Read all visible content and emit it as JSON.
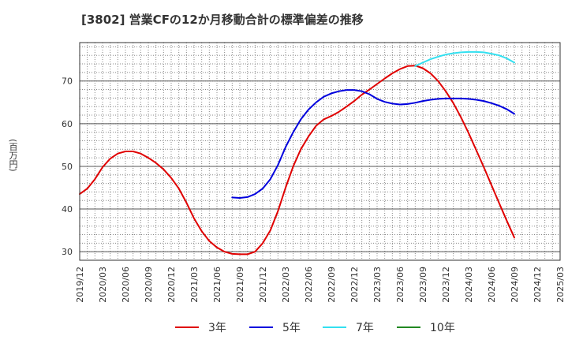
{
  "title": "[3802]  営業CFの12か月移動合計の標準偏差の推移",
  "y_unit": "(百万円)",
  "colors": {
    "3y": "#e00000",
    "5y": "#0000dd",
    "7y": "#33e0f0",
    "10y": "#228822",
    "grid": "#888888",
    "axis": "#333333"
  },
  "chart_data": {
    "type": "line",
    "title": "[3802]  営業CFの12か月移動合計の標準偏差の推移",
    "ylabel": "(百万円)",
    "xlabel": "",
    "ylim": [
      28,
      79
    ],
    "yticks": [
      30,
      40,
      50,
      60,
      70
    ],
    "xlim": [
      "2019-12",
      "2025-03"
    ],
    "xticks": [
      "2019/12",
      "2020/03",
      "2020/06",
      "2020/09",
      "2020/12",
      "2021/03",
      "2021/06",
      "2021/09",
      "2021/12",
      "2022/03",
      "2022/06",
      "2022/09",
      "2022/12",
      "2023/03",
      "2023/06",
      "2023/09",
      "2023/12",
      "2024/03",
      "2024/06",
      "2024/09",
      "2024/12",
      "2025/03"
    ],
    "grid": true,
    "legend_position": "bottom",
    "series": [
      {
        "name": "3年",
        "color": "#e00000",
        "x": [
          "2019-12",
          "2020-01",
          "2020-02",
          "2020-03",
          "2020-04",
          "2020-05",
          "2020-06",
          "2020-07",
          "2020-08",
          "2020-09",
          "2020-10",
          "2020-11",
          "2020-12",
          "2021-01",
          "2021-02",
          "2021-03",
          "2021-04",
          "2021-05",
          "2021-06",
          "2021-07",
          "2021-08",
          "2021-09",
          "2021-10",
          "2021-11",
          "2021-12",
          "2022-01",
          "2022-02",
          "2022-03",
          "2022-04",
          "2022-05",
          "2022-06",
          "2022-07",
          "2022-08",
          "2022-09",
          "2022-10",
          "2022-11",
          "2022-12",
          "2023-01",
          "2023-02",
          "2023-03",
          "2023-04",
          "2023-05",
          "2023-06",
          "2023-07",
          "2023-08",
          "2023-09",
          "2023-10",
          "2023-11",
          "2023-12",
          "2024-01",
          "2024-02",
          "2024-03",
          "2024-04",
          "2024-05",
          "2024-06",
          "2024-07",
          "2024-08",
          "2024-09"
        ],
        "values": [
          43.5,
          44.8,
          47.0,
          49.8,
          51.8,
          53.0,
          53.5,
          53.5,
          53.0,
          52.0,
          50.8,
          49.3,
          47.3,
          44.8,
          41.5,
          37.8,
          34.8,
          32.5,
          31.0,
          30.0,
          29.5,
          29.4,
          29.4,
          30.0,
          32.0,
          35.0,
          39.5,
          45.0,
          50.0,
          54.0,
          57.0,
          59.5,
          61.0,
          61.8,
          62.8,
          64.0,
          65.3,
          66.8,
          68.0,
          69.3,
          70.6,
          71.8,
          72.8,
          73.5,
          73.6,
          73.0,
          71.8,
          70.0,
          67.6,
          64.8,
          61.5,
          57.8,
          53.8,
          49.8,
          45.6,
          41.4,
          37.3,
          33.3
        ]
      },
      {
        "name": "5年",
        "color": "#0000dd",
        "x": [
          "2021-08",
          "2021-09",
          "2021-10",
          "2021-11",
          "2021-12",
          "2022-01",
          "2022-02",
          "2022-03",
          "2022-04",
          "2022-05",
          "2022-06",
          "2022-07",
          "2022-08",
          "2022-09",
          "2022-10",
          "2022-11",
          "2022-12",
          "2023-01",
          "2023-02",
          "2023-03",
          "2023-04",
          "2023-05",
          "2023-06",
          "2023-07",
          "2023-08",
          "2023-09",
          "2023-10",
          "2023-11",
          "2023-12",
          "2024-01",
          "2024-02",
          "2024-03",
          "2024-04",
          "2024-05",
          "2024-06",
          "2024-07",
          "2024-08",
          "2024-09"
        ],
        "values": [
          42.7,
          42.6,
          42.8,
          43.5,
          44.8,
          47.0,
          50.3,
          54.5,
          58.0,
          61.0,
          63.3,
          65.0,
          66.3,
          67.1,
          67.6,
          67.9,
          67.9,
          67.6,
          66.9,
          65.8,
          65.1,
          64.7,
          64.5,
          64.6,
          64.9,
          65.3,
          65.6,
          65.8,
          65.9,
          65.9,
          65.9,
          65.8,
          65.6,
          65.3,
          64.8,
          64.2,
          63.4,
          62.3
        ]
      },
      {
        "name": "7年",
        "color": "#33e0f0",
        "x": [
          "2023-08",
          "2023-09",
          "2023-10",
          "2023-11",
          "2023-12",
          "2024-01",
          "2024-02",
          "2024-03",
          "2024-04",
          "2024-05",
          "2024-06",
          "2024-07",
          "2024-08",
          "2024-09"
        ],
        "values": [
          73.5,
          74.3,
          75.1,
          75.7,
          76.2,
          76.5,
          76.7,
          76.8,
          76.8,
          76.7,
          76.4,
          76.0,
          75.3,
          74.3
        ]
      },
      {
        "name": "10年",
        "color": "#228822",
        "x": [],
        "values": []
      }
    ]
  },
  "legend": [
    {
      "label": "3年",
      "color": "#e00000"
    },
    {
      "label": "5年",
      "color": "#0000dd"
    },
    {
      "label": "7年",
      "color": "#33e0f0"
    },
    {
      "label": "10年",
      "color": "#228822"
    }
  ]
}
